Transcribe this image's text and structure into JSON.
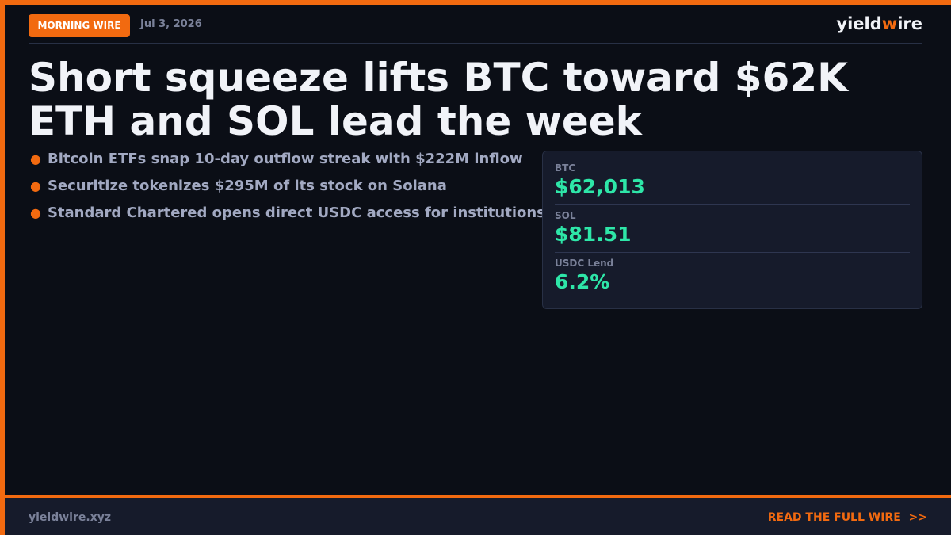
{
  "header": {
    "badge": "MORNING WIRE",
    "date": "Jul 3, 2026",
    "logo": {
      "before": "yield",
      "accent": "w",
      "after": "ire"
    }
  },
  "headline": {
    "lines": [
      "Short squeeze lifts BTC toward $62K",
      "ETH and SOL lead the week"
    ]
  },
  "bullets": [
    "Bitcoin ETFs snap 10-day outflow streak with $222M inflow",
    "Securitize tokenizes $295M of its stock on Solana",
    "Standard Chartered opens direct USDC access for institutions"
  ],
  "stats": [
    {
      "label": "BTC",
      "value": "$62,013"
    },
    {
      "label": "SOL",
      "value": "$81.51"
    },
    {
      "label": "USDC Lend",
      "value": "6.2%"
    }
  ],
  "footer": {
    "site": "yieldwire.xyz",
    "cta": "READ THE FULL WIRE",
    "cta_arrow": ">>"
  }
}
